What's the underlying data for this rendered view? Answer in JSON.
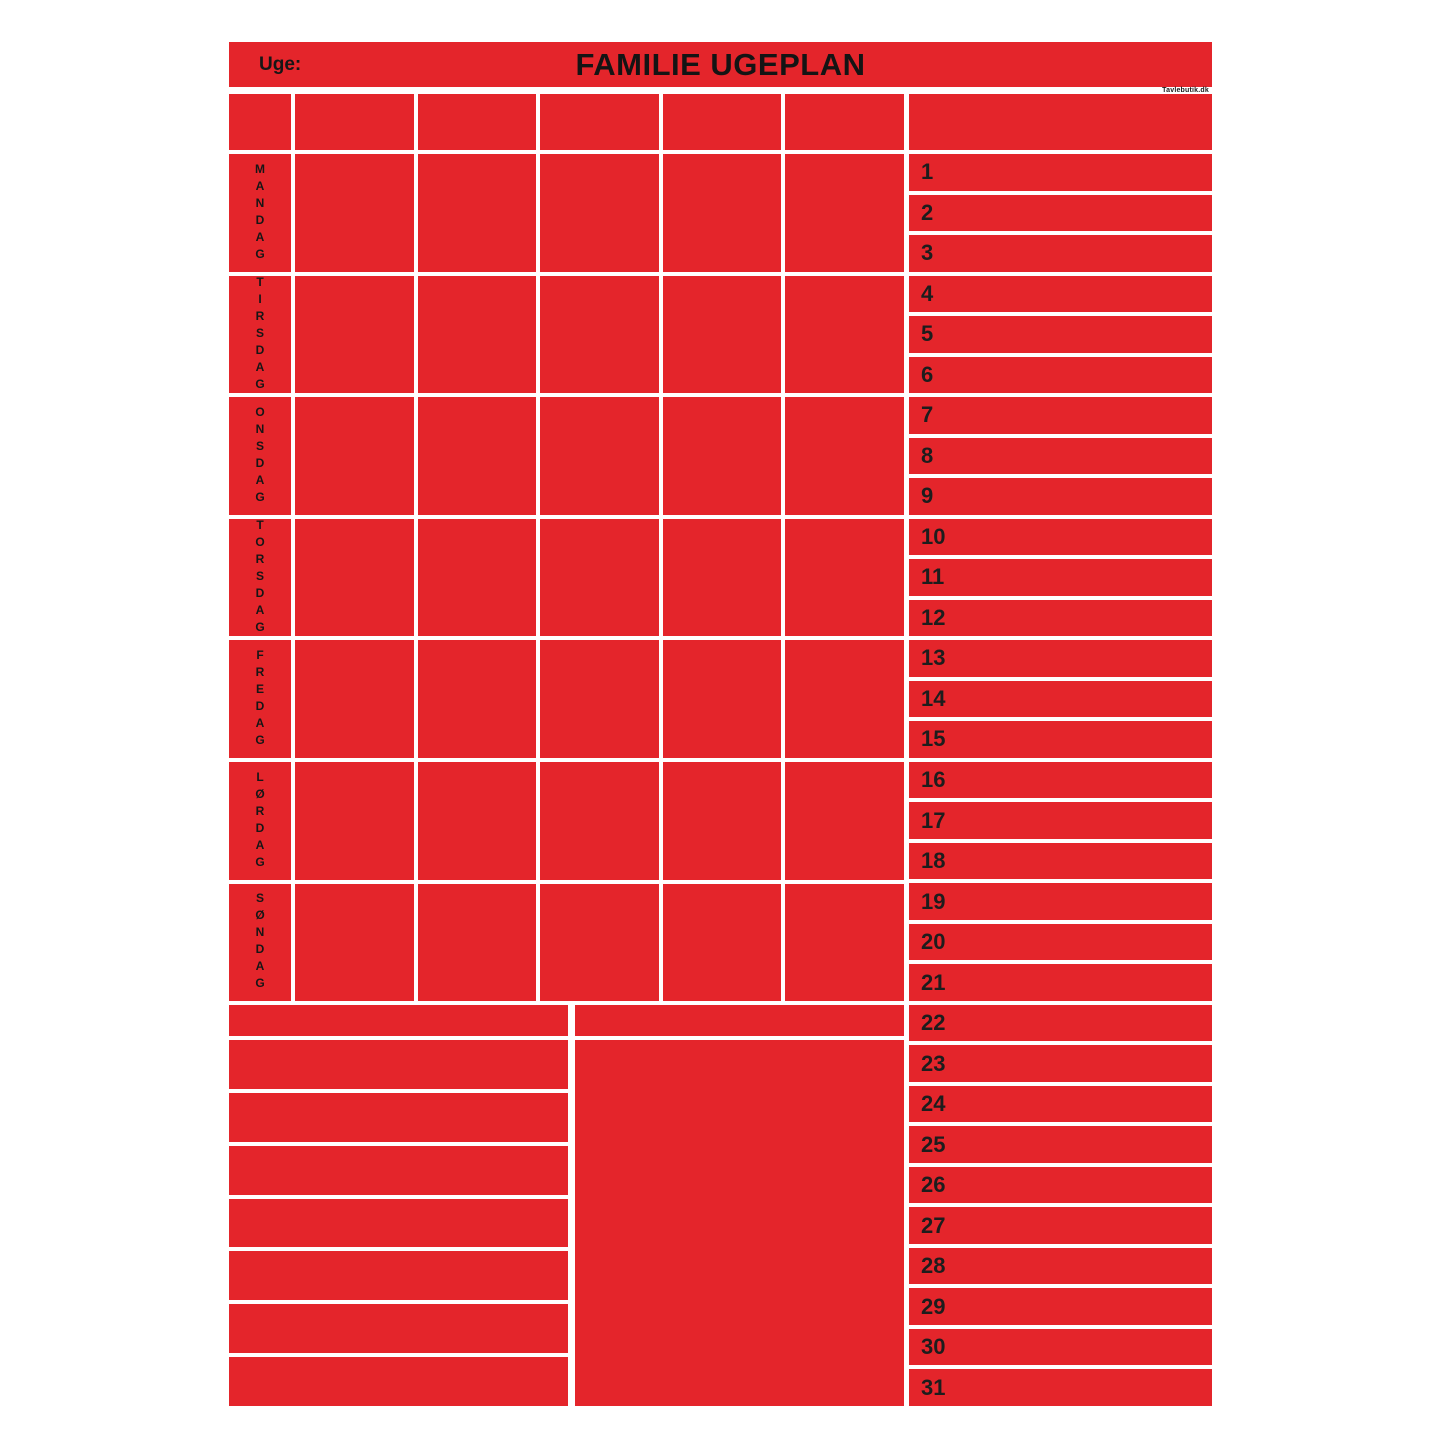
{
  "colors": {
    "red": "#e4252b",
    "ink": "#161616",
    "page_background": "#ffffff"
  },
  "header": {
    "week_label": "Uge:",
    "title": "FAMILIE UGEPLAN",
    "watermark": "Tavlebutik.dk"
  },
  "week_grid": {
    "columns": 5,
    "days": [
      "MANDAG",
      "TIRSDAG",
      "ONSDAG",
      "TORSDAG",
      "FREDAG",
      "LØRDAG",
      "SØNDAG"
    ]
  },
  "month_list": {
    "numbers": [
      "1",
      "2",
      "3",
      "4",
      "5",
      "6",
      "7",
      "8",
      "9",
      "10",
      "11",
      "12",
      "13",
      "14",
      "15",
      "16",
      "17",
      "18",
      "19",
      "20",
      "21",
      "22",
      "23",
      "24",
      "25",
      "26",
      "27",
      "28",
      "29",
      "30",
      "31"
    ]
  },
  "bottom_notes": {
    "left_strip_count": 8
  }
}
